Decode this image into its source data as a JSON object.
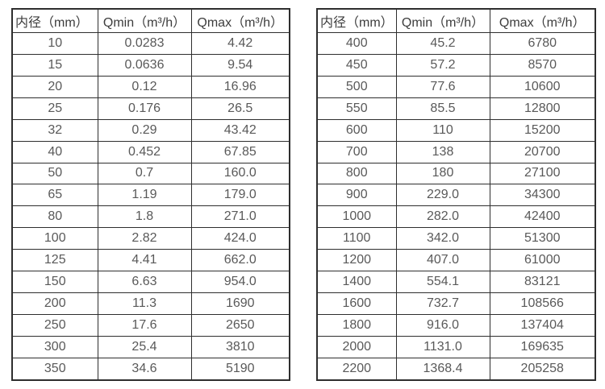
{
  "tables": [
    {
      "name": "flow-spec-table-dn10-350",
      "headers": [
        "内径（mm）",
        "Qmin（m³/h）",
        "Qmax（m³/h）"
      ],
      "rows": [
        [
          "10",
          "0.0283",
          "4.42"
        ],
        [
          "15",
          "0.0636",
          "9.54"
        ],
        [
          "20",
          "0.12",
          "16.96"
        ],
        [
          "25",
          "0.176",
          "26.5"
        ],
        [
          "32",
          "0.29",
          "43.42"
        ],
        [
          "40",
          "0.452",
          "67.85"
        ],
        [
          "50",
          "0.7",
          "160.0"
        ],
        [
          "65",
          "1.19",
          "179.0"
        ],
        [
          "80",
          "1.8",
          "271.0"
        ],
        [
          "100",
          "2.82",
          "424.0"
        ],
        [
          "125",
          "4.41",
          "662.0"
        ],
        [
          "150",
          "6.63",
          "954.0"
        ],
        [
          "200",
          "11.3",
          "1690"
        ],
        [
          "250",
          "17.6",
          "2650"
        ],
        [
          "300",
          "25.4",
          "3810"
        ],
        [
          "350",
          "34.6",
          "5190"
        ]
      ]
    },
    {
      "name": "flow-spec-table-dn400-2200",
      "headers": [
        "内径（mm）",
        "Qmin（m³/h）",
        "Qmax（m³/h）"
      ],
      "rows": [
        [
          "400",
          "45.2",
          "6780"
        ],
        [
          "450",
          "57.2",
          "8570"
        ],
        [
          "500",
          "77.6",
          "10600"
        ],
        [
          "550",
          "85.5",
          "12800"
        ],
        [
          "600",
          "110",
          "15200"
        ],
        [
          "700",
          "138",
          "20700"
        ],
        [
          "800",
          "180",
          "27100"
        ],
        [
          "900",
          "229.0",
          "34300"
        ],
        [
          "1000",
          "282.0",
          "42400"
        ],
        [
          "1100",
          "342.0",
          "51300"
        ],
        [
          "1200",
          "407.0",
          "61000"
        ],
        [
          "1400",
          "554.1",
          "83121"
        ],
        [
          "1600",
          "732.7",
          "108566"
        ],
        [
          "1800",
          "916.0",
          "137404"
        ],
        [
          "2000",
          "1131.0",
          "169635"
        ],
        [
          "2200",
          "1368.4",
          "205258"
        ]
      ]
    }
  ],
  "colors": {
    "border": "#2e2e2e",
    "header_text": "#3d3d3d",
    "cell_text": "#595959",
    "background": "#ffffff"
  }
}
